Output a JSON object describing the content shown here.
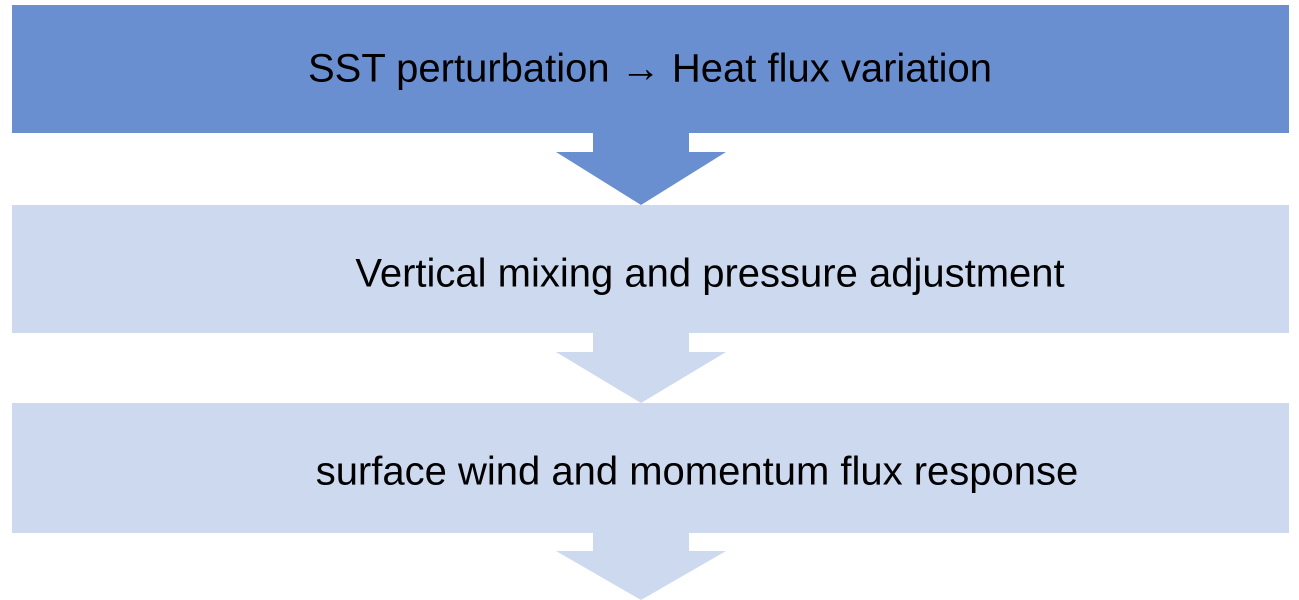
{
  "nodes": [
    {
      "label": "SST perturbation → Heat flux variation"
    },
    {
      "label": "Vertical mixing and pressure adjustment"
    },
    {
      "label": "surface wind and momentum flux response"
    }
  ]
}
